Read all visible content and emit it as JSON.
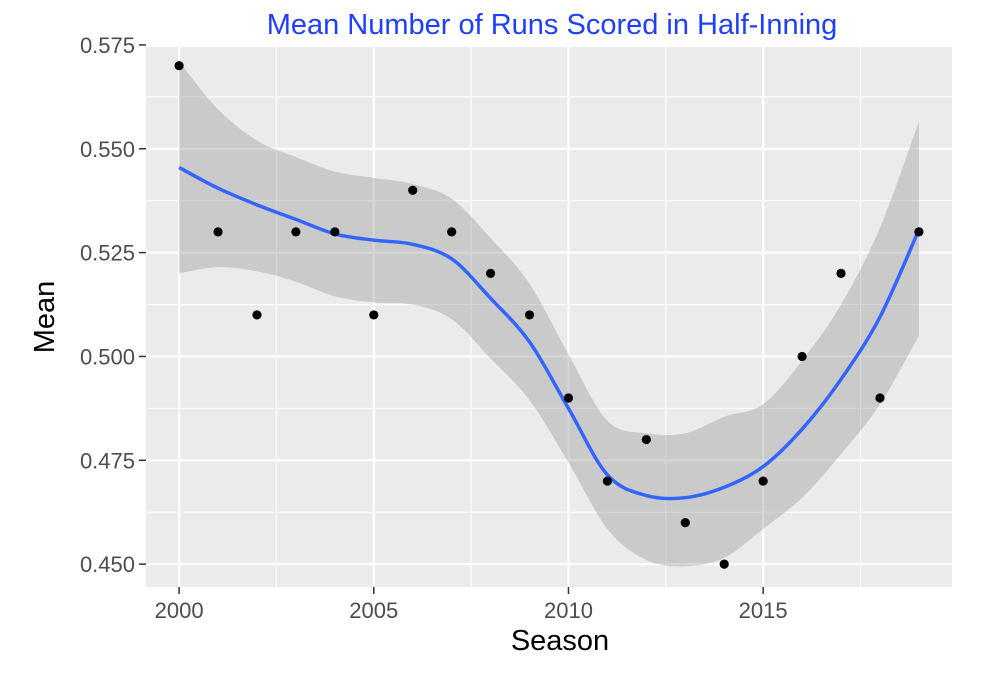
{
  "chart_data": {
    "type": "scatter",
    "title": "Mean Number of Runs Scored in Half-Inning",
    "xlabel": "Season",
    "ylabel": "Mean",
    "xlim": [
      1999.15,
      2019.85
    ],
    "ylim": [
      0.4445,
      0.5745
    ],
    "x_ticks": [
      2000,
      2005,
      2010,
      2015
    ],
    "x_tick_labels": [
      "2000",
      "2005",
      "2010",
      "2015"
    ],
    "y_ticks": [
      0.45,
      0.475,
      0.5,
      0.525,
      0.55,
      0.575
    ],
    "y_tick_labels": [
      "0.450",
      "0.475",
      "0.500",
      "0.525",
      "0.550",
      "0.575"
    ],
    "grid": true,
    "points": {
      "x": [
        2000,
        2001,
        2002,
        2003,
        2004,
        2005,
        2006,
        2007,
        2008,
        2009,
        2010,
        2011,
        2012,
        2013,
        2014,
        2015,
        2016,
        2017,
        2018,
        2019
      ],
      "y": [
        0.57,
        0.53,
        0.51,
        0.53,
        0.53,
        0.51,
        0.54,
        0.53,
        0.52,
        0.51,
        0.49,
        0.47,
        0.48,
        0.46,
        0.45,
        0.47,
        0.5,
        0.52,
        0.49,
        0.53
      ]
    },
    "smooth": {
      "x": [
        2000,
        2001,
        2002,
        2003,
        2004,
        2005,
        2006,
        2007,
        2008,
        2009,
        2010,
        2011,
        2012,
        2013,
        2014,
        2015,
        2016,
        2017,
        2018,
        2019
      ],
      "y": [
        0.5455,
        0.5405,
        0.5365,
        0.533,
        0.5295,
        0.528,
        0.527,
        0.5235,
        0.514,
        0.5035,
        0.4875,
        0.4715,
        0.4665,
        0.466,
        0.4685,
        0.4735,
        0.4825,
        0.4945,
        0.5095,
        0.5305
      ],
      "lower": [
        0.52,
        0.5215,
        0.5205,
        0.518,
        0.5145,
        0.513,
        0.5125,
        0.509,
        0.4995,
        0.4895,
        0.4745,
        0.4585,
        0.451,
        0.4495,
        0.4515,
        0.4585,
        0.466,
        0.4765,
        0.4885,
        0.505
      ],
      "upper": [
        0.571,
        0.5595,
        0.552,
        0.548,
        0.5445,
        0.543,
        0.5415,
        0.538,
        0.5285,
        0.5175,
        0.5005,
        0.4845,
        0.4815,
        0.4815,
        0.4855,
        0.4885,
        0.499,
        0.5125,
        0.531,
        0.5565
      ]
    },
    "colors": {
      "title": "#1f3fff",
      "panel": "#ebebeb",
      "grid": "#ffffff",
      "points": "#000000",
      "smooth_line": "#3366ff",
      "ribbon": "#999999"
    }
  }
}
